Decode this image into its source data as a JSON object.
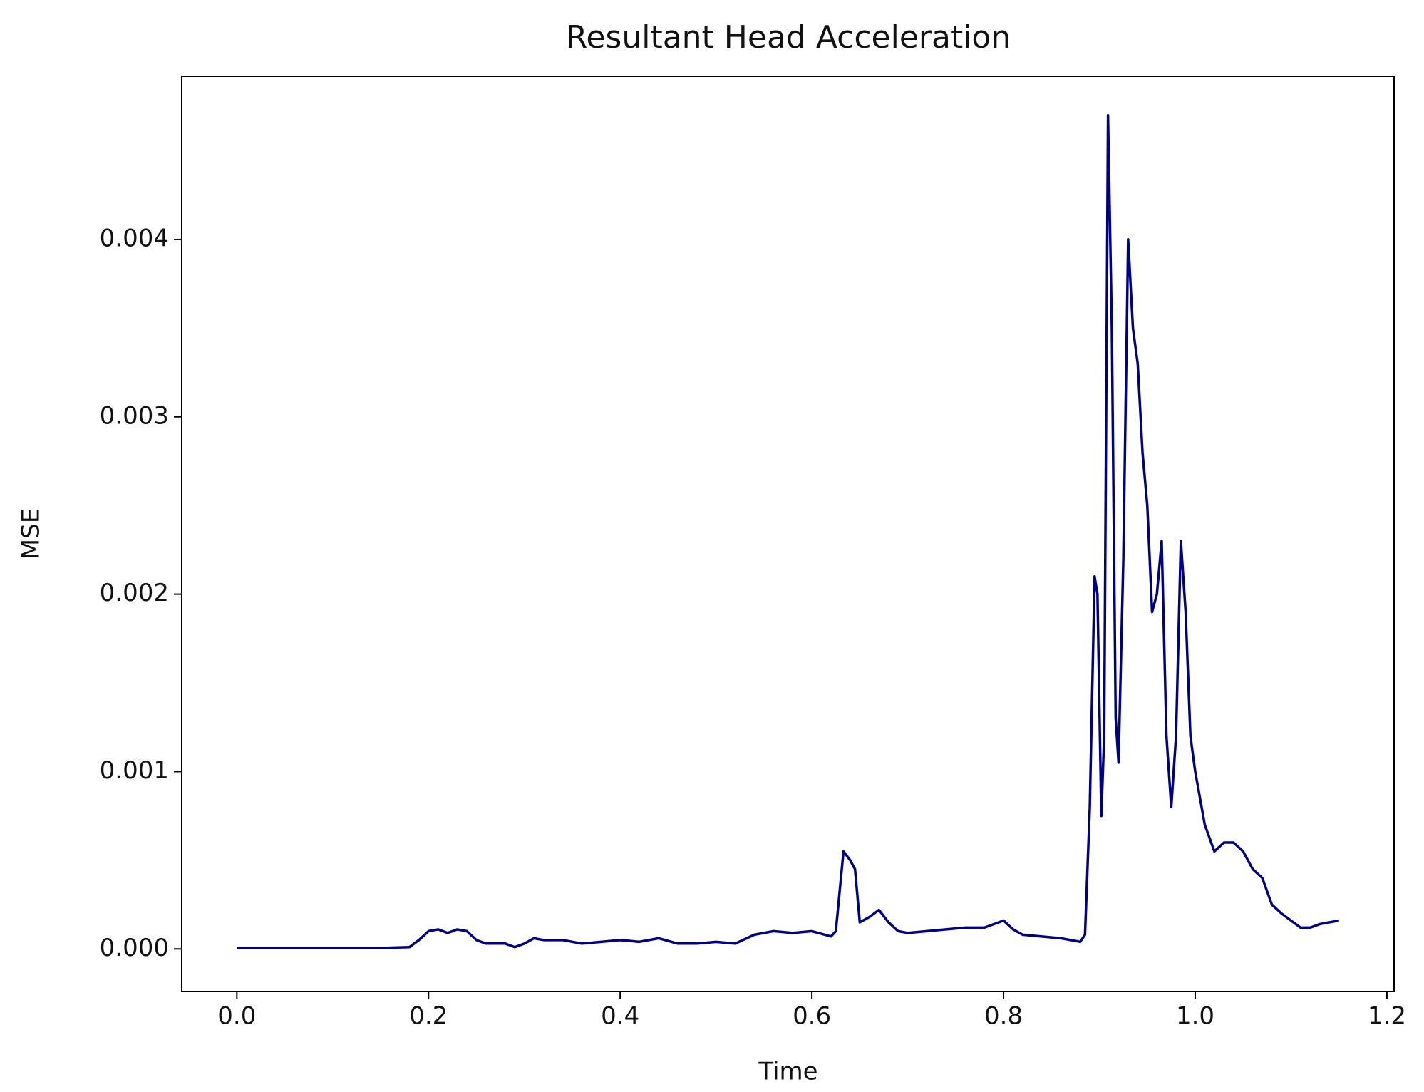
{
  "chart_data": {
    "type": "line",
    "title": "Resultant Head Acceleration",
    "x_label": "Time",
    "y_label": "MSE",
    "color": "#000080",
    "x": [
      0.0,
      0.05,
      0.1,
      0.15,
      0.18,
      0.19,
      0.2,
      0.21,
      0.22,
      0.23,
      0.24,
      0.25,
      0.26,
      0.27,
      0.28,
      0.29,
      0.3,
      0.31,
      0.32,
      0.34,
      0.36,
      0.38,
      0.4,
      0.42,
      0.44,
      0.46,
      0.48,
      0.5,
      0.52,
      0.54,
      0.56,
      0.58,
      0.6,
      0.62,
      0.625,
      0.633,
      0.64,
      0.645,
      0.65,
      0.66,
      0.67,
      0.68,
      0.69,
      0.7,
      0.72,
      0.74,
      0.76,
      0.78,
      0.8,
      0.81,
      0.82,
      0.84,
      0.86,
      0.88,
      0.885,
      0.89,
      0.895,
      0.898,
      0.902,
      0.905,
      0.909,
      0.913,
      0.917,
      0.92,
      0.925,
      0.93,
      0.935,
      0.94,
      0.945,
      0.95,
      0.955,
      0.96,
      0.965,
      0.97,
      0.975,
      0.98,
      0.985,
      0.99,
      0.995,
      1.0,
      1.01,
      1.02,
      1.03,
      1.04,
      1.05,
      1.06,
      1.07,
      1.08,
      1.09,
      1.1,
      1.11,
      1.12,
      1.13,
      1.14,
      1.15
    ],
    "values": [
      5e-06,
      5e-06,
      5e-06,
      5e-06,
      1e-05,
      5e-05,
      0.0001,
      0.00011,
      9e-05,
      0.00011,
      0.0001,
      5e-05,
      3e-05,
      3e-05,
      3e-05,
      1e-05,
      3e-05,
      6e-05,
      5e-05,
      5e-05,
      3e-05,
      4e-05,
      5e-05,
      4e-05,
      6e-05,
      3e-05,
      3e-05,
      4e-05,
      3e-05,
      8e-05,
      0.0001,
      9e-05,
      0.0001,
      7e-05,
      0.0001,
      0.00055,
      0.0005,
      0.00045,
      0.00015,
      0.00018,
      0.00022,
      0.00015,
      0.0001,
      9e-05,
      0.0001,
      0.00011,
      0.00012,
      0.00012,
      0.00016,
      0.00011,
      8e-05,
      7e-05,
      6e-05,
      4e-05,
      8e-05,
      0.0008,
      0.0021,
      0.002,
      0.00075,
      0.0012,
      0.0047,
      0.0035,
      0.0013,
      0.00105,
      0.0022,
      0.004,
      0.0035,
      0.0033,
      0.0028,
      0.0025,
      0.0019,
      0.002,
      0.0023,
      0.0012,
      0.0008,
      0.0012,
      0.0023,
      0.0019,
      0.0012,
      0.001,
      0.0007,
      0.00055,
      0.0006,
      0.0006,
      0.00055,
      0.00045,
      0.0004,
      0.00025,
      0.0002,
      0.00016,
      0.00012,
      0.00012,
      0.00014,
      0.00015,
      0.00016
    ],
    "xlim": [
      -0.0575,
      1.2075
    ],
    "ylim": [
      -0.00024,
      0.00492
    ],
    "xticks": [
      {
        "value": 0,
        "label": "0.0"
      },
      0.2,
      0.4,
      0.6,
      0.8,
      {
        "value": 1,
        "label": "1.0"
      },
      1.2
    ],
    "yticks": [
      {
        "value": 0,
        "label": "0.000"
      },
      0.001,
      0.002,
      0.003,
      0.004
    ]
  }
}
